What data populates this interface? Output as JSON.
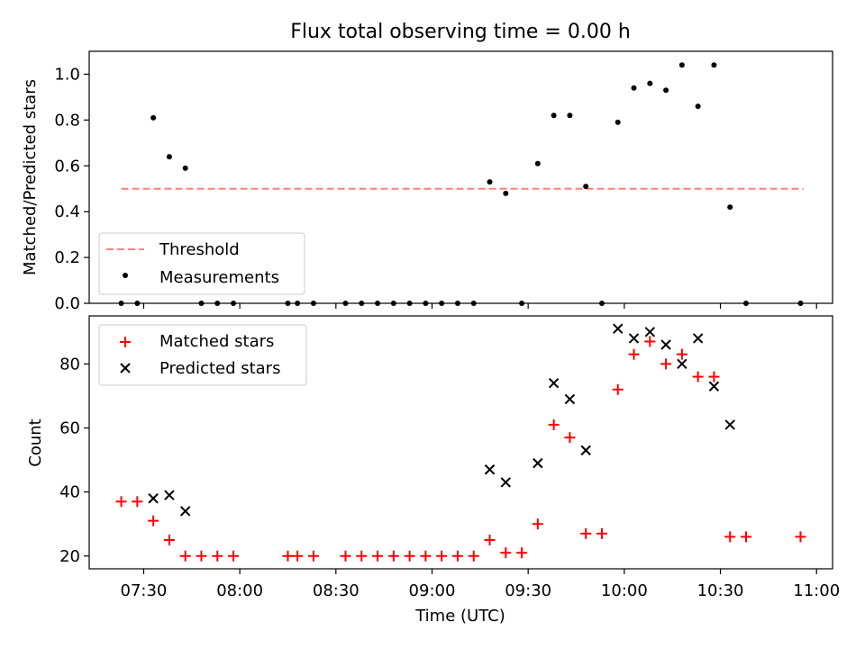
{
  "chart_data": [
    {
      "type": "scatter",
      "title": "Flux total observing time = 0.00 h",
      "xlabel": "",
      "ylabel": "Matched/Predicted stars",
      "ylim": [
        0,
        1.1
      ],
      "yticks": [
        "0.0",
        "0.2",
        "0.4",
        "0.6",
        "0.8",
        "1.0"
      ],
      "grid": false,
      "legend_position": "lower-left",
      "threshold": {
        "name": "Threshold",
        "value": 0.5,
        "x_start": "07:23",
        "x_end": "10:56",
        "color": "#ff7f7f",
        "style": "dashed"
      },
      "series": [
        {
          "name": "Measurements",
          "color": "#000000",
          "marker": "dot",
          "x": [
            "07:23",
            "07:28",
            "07:33",
            "07:38",
            "07:43",
            "07:48",
            "07:53",
            "07:58",
            "08:15",
            "08:18",
            "08:23",
            "08:33",
            "08:38",
            "08:43",
            "08:48",
            "08:53",
            "08:58",
            "09:03",
            "09:08",
            "09:13",
            "09:18",
            "09:23",
            "09:28",
            "09:33",
            "09:38",
            "09:43",
            "09:48",
            "09:53",
            "09:58",
            "10:03",
            "10:08",
            "10:13",
            "10:18",
            "10:23",
            "10:28",
            "10:33",
            "10:38",
            "10:55"
          ],
          "y": [
            0,
            0,
            0.81,
            0.64,
            0.59,
            0,
            0,
            0,
            0,
            0,
            0,
            0,
            0,
            0,
            0,
            0,
            0,
            0,
            0,
            0,
            0.53,
            0.48,
            0,
            0.61,
            0.82,
            0.82,
            0.51,
            0,
            0.79,
            0.94,
            0.96,
            0.93,
            1.04,
            0.86,
            1.04,
            0.42,
            0,
            0
          ]
        }
      ]
    },
    {
      "type": "scatter",
      "title": "",
      "xlabel": "Time (UTC)",
      "ylabel": "Count",
      "ylim": [
        16,
        95
      ],
      "yticks": [
        "20",
        "40",
        "60",
        "80"
      ],
      "xlim": [
        "07:13",
        "11:05"
      ],
      "xticks": [
        "07:30",
        "08:00",
        "08:30",
        "09:00",
        "09:30",
        "10:00",
        "10:30",
        "11:00"
      ],
      "grid": false,
      "legend_position": "upper-left",
      "series": [
        {
          "name": "Matched stars",
          "color": "#ff0000",
          "marker": "plus",
          "x": [
            "07:23",
            "07:28",
            "07:33",
            "07:38",
            "07:43",
            "07:48",
            "07:53",
            "07:58",
            "08:15",
            "08:18",
            "08:23",
            "08:33",
            "08:38",
            "08:43",
            "08:48",
            "08:53",
            "08:58",
            "09:03",
            "09:08",
            "09:13",
            "09:18",
            "09:23",
            "09:28",
            "09:33",
            "09:38",
            "09:43",
            "09:48",
            "09:53",
            "09:58",
            "10:03",
            "10:08",
            "10:13",
            "10:18",
            "10:23",
            "10:28",
            "10:33",
            "10:38",
            "10:55"
          ],
          "y": [
            37,
            37,
            31,
            25,
            20,
            20,
            20,
            20,
            20,
            20,
            20,
            20,
            20,
            20,
            20,
            20,
            20,
            20,
            20,
            20,
            25,
            21,
            21,
            30,
            61,
            57,
            27,
            27,
            72,
            83,
            87,
            80,
            83,
            76,
            76,
            26,
            26,
            26
          ]
        },
        {
          "name": "Predicted stars",
          "color": "#000000",
          "marker": "x",
          "x": [
            "07:33",
            "07:38",
            "07:43",
            "09:18",
            "09:23",
            "09:33",
            "09:38",
            "09:43",
            "09:48",
            "09:58",
            "10:03",
            "10:08",
            "10:13",
            "10:18",
            "10:23",
            "10:28",
            "10:33"
          ],
          "y": [
            38,
            39,
            34,
            47,
            43,
            49,
            74,
            69,
            53,
            91,
            88,
            90,
            86,
            80,
            88,
            73,
            61
          ]
        }
      ]
    }
  ]
}
